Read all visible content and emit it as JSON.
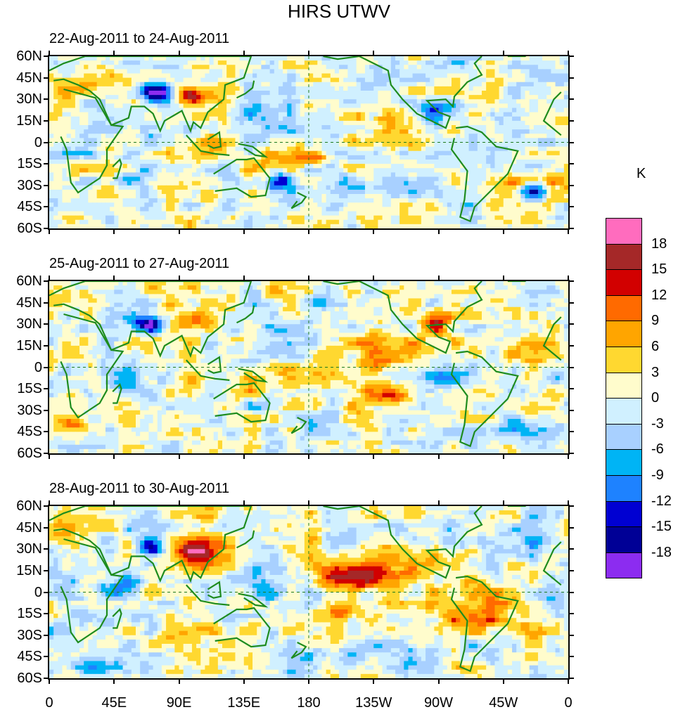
{
  "title": "HIRS UTWV",
  "chart_data": {
    "type": "heatmap",
    "title": "HIRS UTWV",
    "units": "K",
    "panels": [
      {
        "title": "22-Aug-2011 to 24-Aug-2011"
      },
      {
        "title": "25-Aug-2011 to 27-Aug-2011"
      },
      {
        "title": "28-Aug-2011 to 30-Aug-2011"
      }
    ],
    "y_ticks": [
      "60N",
      "45N",
      "30N",
      "15N",
      "0",
      "15S",
      "30S",
      "45S",
      "60S"
    ],
    "y_values": [
      60,
      45,
      30,
      15,
      0,
      -15,
      -30,
      -45,
      -60
    ],
    "x_ticks": [
      "0",
      "45E",
      "90E",
      "135E",
      "180",
      "135W",
      "90W",
      "45W",
      "0"
    ],
    "x_values": [
      0,
      45,
      90,
      135,
      180,
      225,
      270,
      315,
      360
    ],
    "xlim": [
      0,
      360
    ],
    "ylim": [
      -60,
      60
    ],
    "colorbar": {
      "labels": [
        "18",
        "15",
        "12",
        "9",
        "6",
        "3",
        "0",
        "-3",
        "-6",
        "-9",
        "-12",
        "-15",
        "-18"
      ],
      "colors": [
        "#ff6cbe",
        "#a52828",
        "#d20000",
        "#ff6a00",
        "#ffa500",
        "#ffd830",
        "#fffccc",
        "#d0f0ff",
        "#a8d0ff",
        "#00b4f5",
        "#1e82ff",
        "#0000d2",
        "#000096",
        "#8c2cf0"
      ]
    }
  }
}
